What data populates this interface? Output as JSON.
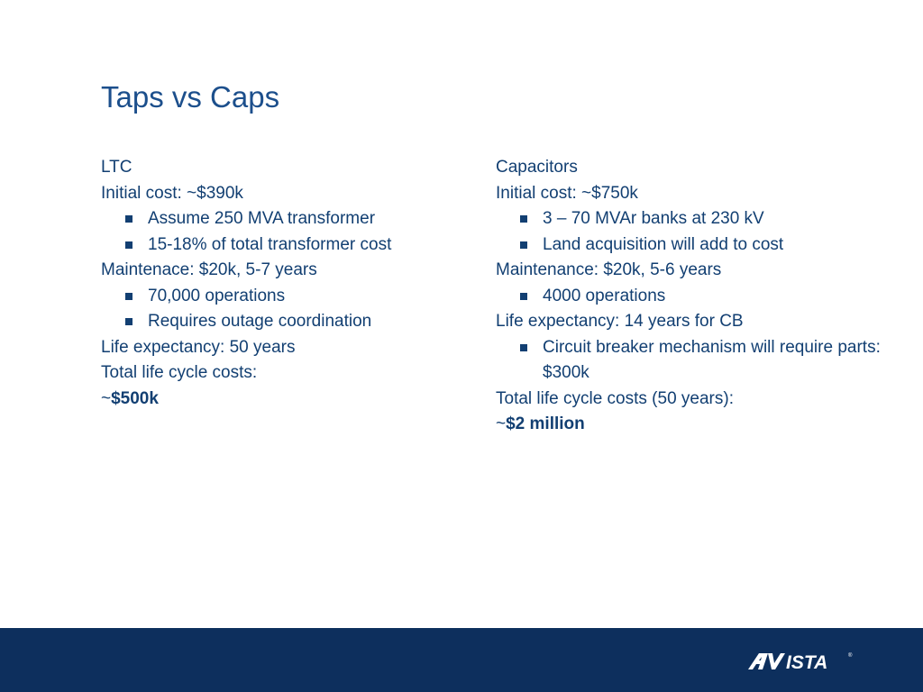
{
  "slide": {
    "title": "Taps vs Caps"
  },
  "ltc": {
    "heading": "LTC",
    "initial_cost": "Initial cost: ~$390k",
    "initial_bullets": [
      "Assume 250 MVA transformer",
      "15-18% of total transformer cost"
    ],
    "maintenance": "Maintenace: $20k, 5-7 years",
    "maintenance_bullets": [
      "70,000 operations",
      "Requires outage coordination"
    ],
    "life_expectancy": "Life expectancy: 50 years",
    "total_label": "Total life cycle costs:",
    "total_prefix": "~",
    "total_value": "$500k"
  },
  "capacitors": {
    "heading": "Capacitors",
    "initial_cost": "Initial cost: ~$750k",
    "initial_bullets": [
      "3 – 70 MVAr banks at 230 kV",
      "Land acquisition will add to cost"
    ],
    "maintenance": "Maintenance: $20k, 5-6 years",
    "maintenance_bullets": [
      "4000 operations"
    ],
    "life_expectancy": "Life expectancy: 14 years for CB",
    "life_bullets": [
      "Circuit breaker mechanism will require parts: $300k"
    ],
    "total_label": "Total life cycle costs (50 years):",
    "total_prefix": "~",
    "total_value": "$2 million"
  },
  "footer": {
    "logo_text": "AVISTA",
    "bar_color": "#0d2f5d"
  },
  "colors": {
    "title": "#1c4f8c",
    "body_text": "#123f72",
    "background": "#ffffff"
  },
  "icons": {
    "bullet": "square-bullet-icon",
    "logo": "avista-logo"
  }
}
